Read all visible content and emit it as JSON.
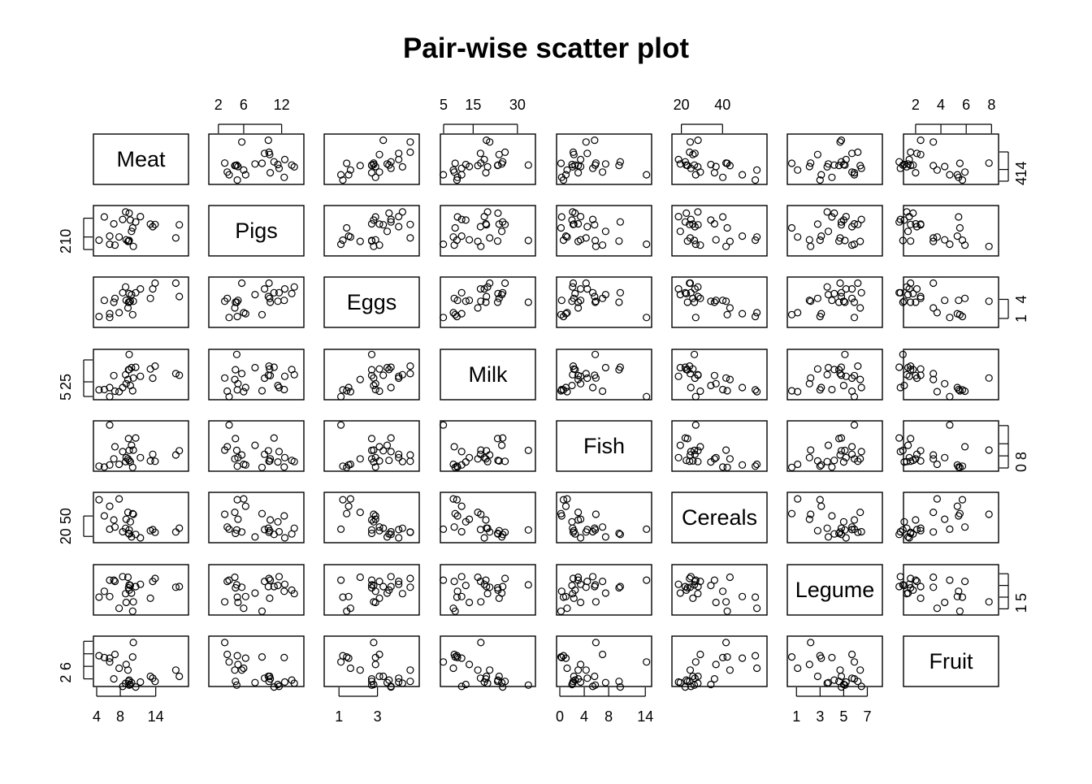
{
  "chart_data": {
    "type": "scatter",
    "subtype": "pairs-matrix",
    "title": "Pair-wise scatter plot",
    "variables": [
      {
        "name": "Meat",
        "range": [
          4,
          19
        ],
        "ticks": [
          4,
          8,
          14
        ]
      },
      {
        "name": "Pigs",
        "range": [
          1,
          15
        ],
        "ticks": [
          2,
          6,
          12
        ]
      },
      {
        "name": "Eggs",
        "range": [
          0.4,
          5
        ],
        "ticks": [
          1,
          3
        ]
      },
      {
        "name": "Milk",
        "range": [
          5,
          35
        ],
        "ticks": [
          5,
          15,
          30
        ]
      },
      {
        "name": "Fish",
        "range": [
          0,
          14.5
        ],
        "ticks": [
          0,
          4,
          8,
          14
        ]
      },
      {
        "name": "Cereals",
        "range": [
          17,
          60
        ],
        "ticks": [
          20,
          40
        ]
      },
      {
        "name": "Legume",
        "range": [
          0.5,
          8
        ],
        "ticks": [
          1,
          3,
          5,
          7
        ]
      },
      {
        "name": "Fruit",
        "range": [
          1.3,
          8.3
        ],
        "ticks": [
          2,
          4,
          6,
          8
        ]
      }
    ],
    "axis_labels": {
      "top": {
        "1": [
          "2",
          "6",
          "12"
        ],
        "3": [
          "5",
          "15",
          "30"
        ],
        "5": [
          "20",
          "40"
        ],
        "7": [
          "2",
          "4",
          "6",
          "8"
        ]
      },
      "right": {
        "0": [
          "4",
          "14"
        ],
        "2": [
          "1",
          "4"
        ],
        "4": [
          "0",
          "8"
        ],
        "6": [
          "1",
          "5"
        ]
      },
      "bottom": {
        "0": [
          "4",
          "8",
          "14"
        ],
        "2": [
          "1",
          "3"
        ],
        "4": [
          "0",
          "4",
          "8",
          "14"
        ],
        "6": [
          "1",
          "3",
          "5",
          "7"
        ]
      },
      "left": {
        "1": [
          "2",
          "10"
        ],
        "3": [
          "5",
          "25"
        ],
        "5": [
          "20",
          "50"
        ],
        "7": [
          "2",
          "6"
        ]
      }
    },
    "observations": [
      [
        10.1,
        8.9,
        1.4,
        8.9,
        0.2,
        42.3,
        0.6,
        5.5
      ],
      [
        8.9,
        14.0,
        4.3,
        19.9,
        2.1,
        28.0,
        3.6,
        1.3
      ],
      [
        13.5,
        9.3,
        4.1,
        17.5,
        4.5,
        26.6,
        5.7,
        2.1
      ],
      [
        7.8,
        6.0,
        1.6,
        8.3,
        1.2,
        56.7,
        1.1,
        3.7
      ],
      [
        9.7,
        11.4,
        2.8,
        12.5,
        2.0,
        34.3,
        5.0,
        1.1
      ],
      [
        10.6,
        10.8,
        3.7,
        25.0,
        9.9,
        21.9,
        4.8,
        0.7
      ],
      [
        8.4,
        11.6,
        3.7,
        11.1,
        5.4,
        24.6,
        6.5,
        0.8
      ],
      [
        9.5,
        4.9,
        2.7,
        33.7,
        5.8,
        26.3,
        5.1,
        1.0
      ],
      [
        18.0,
        9.9,
        3.3,
        19.5,
        5.7,
        28.1,
        4.8,
        2.4
      ],
      [
        10.2,
        3.0,
        2.8,
        17.6,
        5.9,
        41.7,
        2.2,
        7.8
      ],
      [
        5.3,
        12.4,
        2.9,
        9.7,
        0.3,
        40.1,
        4.0,
        5.4
      ],
      [
        13.9,
        10.0,
        4.7,
        25.8,
        2.2,
        24.0,
        6.2,
        1.6
      ],
      [
        9.0,
        5.1,
        2.9,
        13.7,
        3.4,
        36.8,
        2.1,
        4.3
      ],
      [
        9.5,
        13.6,
        3.6,
        23.4,
        2.5,
        22.4,
        4.2,
        1.8
      ],
      [
        9.4,
        4.7,
        2.7,
        23.3,
        9.7,
        23.0,
        4.6,
        1.6
      ],
      [
        6.9,
        10.2,
        2.7,
        19.3,
        3.0,
        36.1,
        5.9,
        2.0
      ],
      [
        6.2,
        3.7,
        1.1,
        4.9,
        14.2,
        27.0,
        5.9,
        4.7
      ],
      [
        6.2,
        6.3,
        1.5,
        11.1,
        1.0,
        49.6,
        3.1,
        5.3
      ],
      [
        7.1,
        3.4,
        3.1,
        8.6,
        7.0,
        29.2,
        5.7,
        5.9
      ],
      [
        9.9,
        7.8,
        3.5,
        24.7,
        7.5,
        19.5,
        3.7,
        1.4
      ],
      [
        13.1,
        10.1,
        3.1,
        23.8,
        2.3,
        25.6,
        2.8,
        2.4
      ],
      [
        17.4,
        5.7,
        4.7,
        20.6,
        4.3,
        24.3,
        4.7,
        3.4
      ],
      [
        9.3,
        4.6,
        2.1,
        16.6,
        3.0,
        43.6,
        6.4,
        3.4
      ],
      [
        11.4,
        12.5,
        4.1,
        18.8,
        3.4,
        18.6,
        5.2,
        1.5
      ],
      [
        4.4,
        5.0,
        1.2,
        9.5,
        0.6,
        55.9,
        3.0,
        5.7
      ]
    ]
  }
}
